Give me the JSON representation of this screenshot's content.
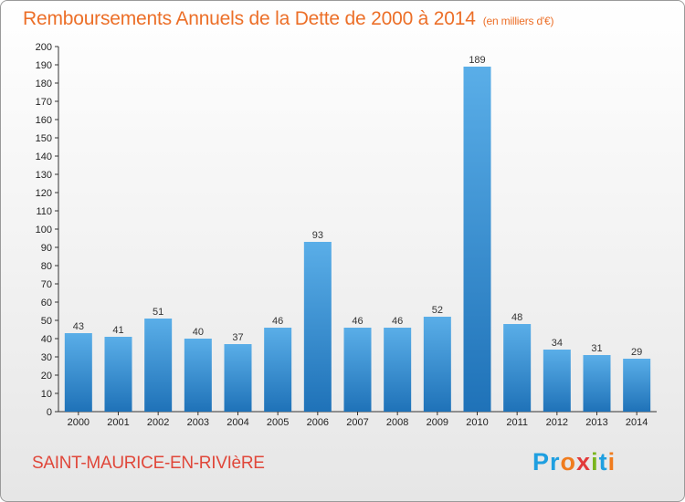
{
  "title": {
    "main": "Remboursements Annuels de la Dette de 2000 à 2014",
    "unit": "(en milliers d'€)"
  },
  "commune": "SAINT-MAURICE-EN-RIVIèRE",
  "logo": {
    "text": "Proxiti",
    "letters": [
      "P",
      "r",
      "o",
      "x",
      "i",
      "t",
      "i"
    ],
    "colors": [
      "#1f9fe0",
      "#1f9fe0",
      "#f07c1e",
      "#e23a3a",
      "#7ab51d",
      "#1f9fe0",
      "#f07c1e"
    ]
  },
  "colors": {
    "title": "#ec6f28",
    "commune": "#e0473a",
    "bar_light": "#5aaee8",
    "bar_dark": "#1f72b8"
  },
  "chart_data": {
    "type": "bar",
    "categories": [
      "2000",
      "2001",
      "2002",
      "2003",
      "2004",
      "2005",
      "2006",
      "2007",
      "2008",
      "2009",
      "2010",
      "2011",
      "2012",
      "2013",
      "2014"
    ],
    "values": [
      43,
      41,
      51,
      40,
      37,
      46,
      93,
      46,
      46,
      52,
      189,
      48,
      34,
      31,
      29
    ],
    "title": "Remboursements Annuels de la Dette de 2000 à 2014",
    "xlabel": "",
    "ylabel": "",
    "ylim": [
      0,
      200
    ],
    "ytick_step": 10,
    "grid": false,
    "legend": "none"
  }
}
